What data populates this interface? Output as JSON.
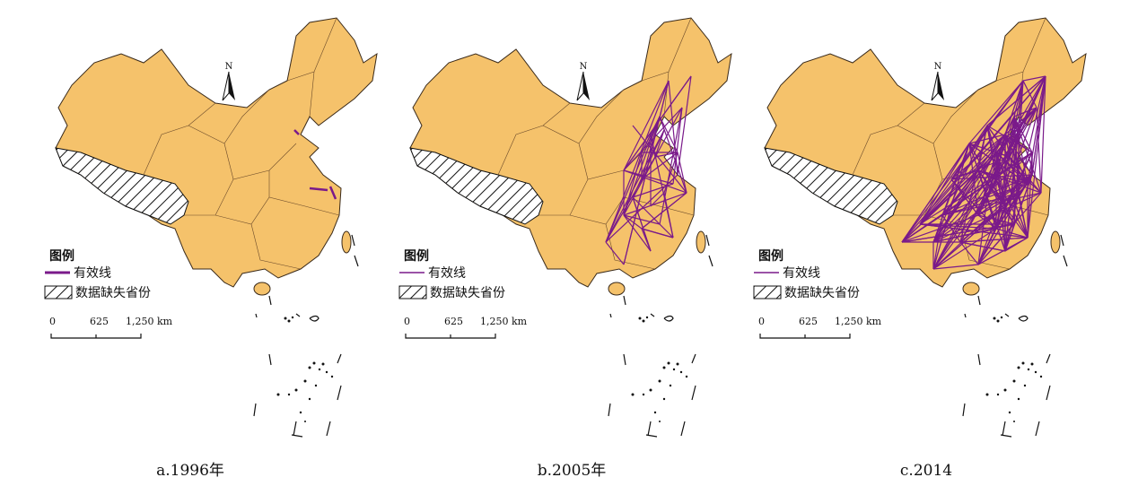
{
  "panels": [
    {
      "caption": "a.1996年",
      "line_density": "sparse"
    },
    {
      "caption": "b.2005年",
      "line_density": "medium"
    },
    {
      "caption": "c.2014",
      "line_density": "dense"
    }
  ],
  "north_arrow": {
    "label": "N"
  },
  "legend": {
    "title": "图例",
    "effective_line": "有效线",
    "missing_data": "数据缺失省份"
  },
  "scale_bar": {
    "ticks": [
      "0",
      "625",
      "1,250 km"
    ]
  },
  "colors": {
    "land": "#F5C26B",
    "line": "#7A1A8A",
    "border": "#3a2a1a",
    "hatch": "#111111"
  }
}
